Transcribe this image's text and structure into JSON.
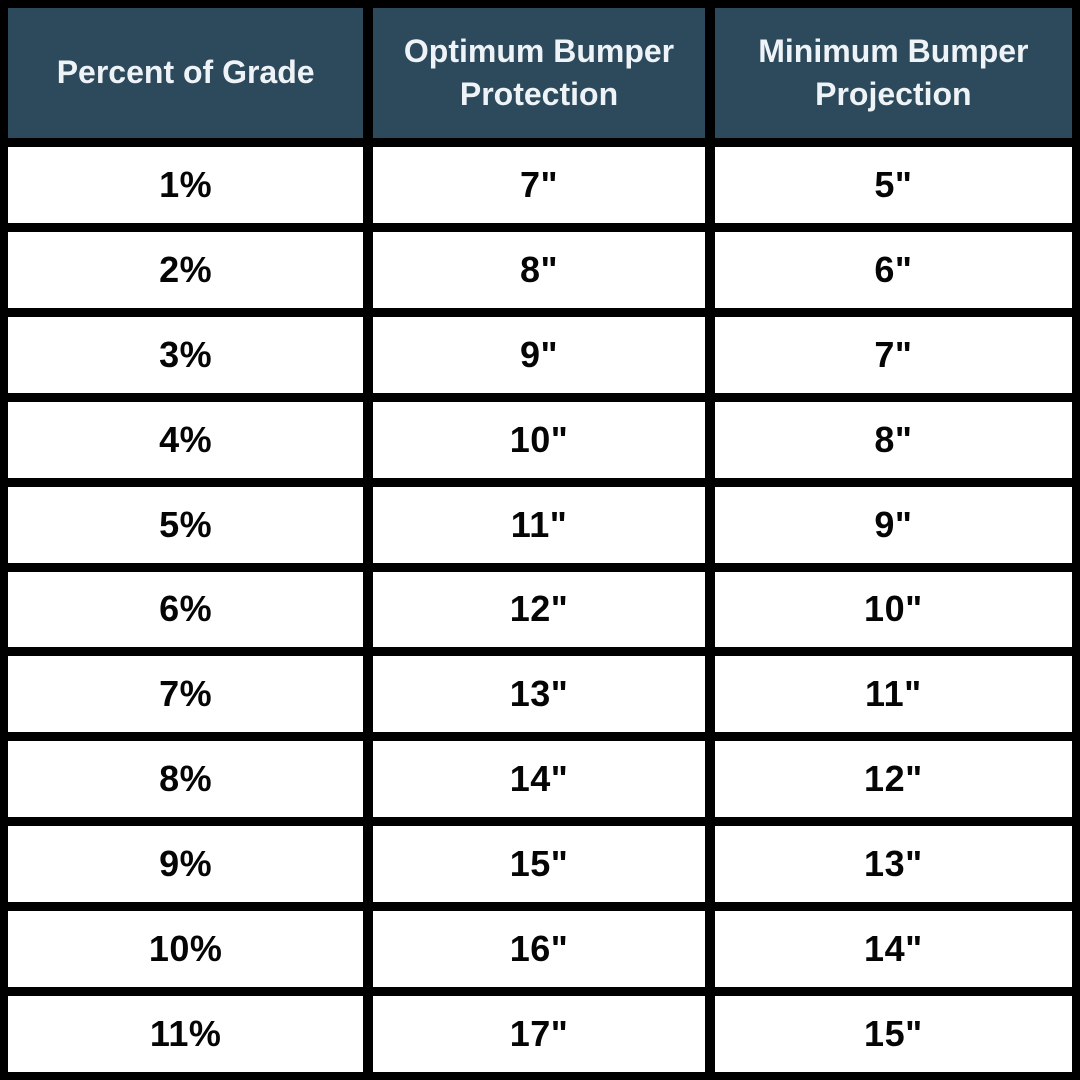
{
  "colors": {
    "page_bg": "#000000",
    "header_bg": "#2d4a5c",
    "header_text": "#eef3f7",
    "cell_bg": "#ffffff",
    "cell_text": "#050505"
  },
  "chart_data": {
    "type": "table",
    "columns": [
      "Percent of Grade",
      "Optimum Bumper Protection",
      "Minimum Bumper Projection"
    ],
    "rows": [
      [
        "1%",
        "7\"",
        "5\""
      ],
      [
        "2%",
        "8\"",
        "6\""
      ],
      [
        "3%",
        "9\"",
        "7\""
      ],
      [
        "4%",
        "10\"",
        "8\""
      ],
      [
        "5%",
        "11\"",
        "9\""
      ],
      [
        "6%",
        "12\"",
        "10\""
      ],
      [
        "7%",
        "13\"",
        "11\""
      ],
      [
        "8%",
        "14\"",
        "12\""
      ],
      [
        "9%",
        "15\"",
        "13\""
      ],
      [
        "10%",
        "16\"",
        "14\""
      ],
      [
        "11%",
        "17\"",
        "15\""
      ]
    ]
  }
}
